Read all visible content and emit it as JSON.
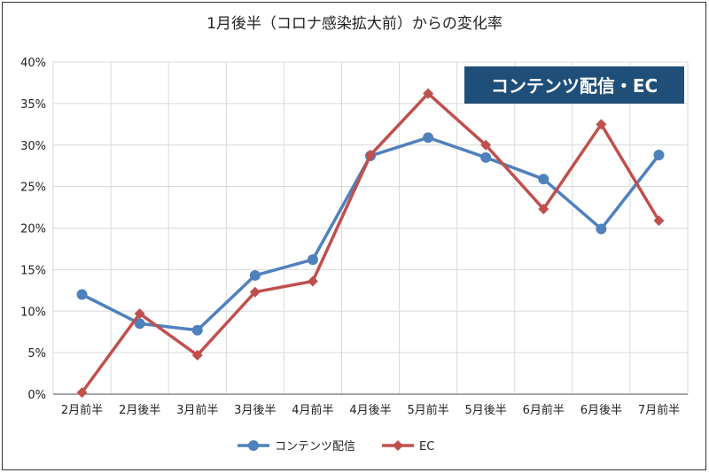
{
  "chart_data": {
    "type": "line",
    "title": "1月後半（コロナ感染拡大前）からの変化率",
    "badge": "コンテンツ配信・EC",
    "categories": [
      "2月前半",
      "2月後半",
      "3月前半",
      "3月後半",
      "4月前半",
      "4月後半",
      "5月前半",
      "5月後半",
      "6月前半",
      "6月後半",
      "7月前半"
    ],
    "y_ticks": [
      "0%",
      "5%",
      "10%",
      "15%",
      "20%",
      "25%",
      "30%",
      "35%",
      "40%"
    ],
    "ylim": [
      0,
      40
    ],
    "grid": true,
    "legend_position": "bottom",
    "series": [
      {
        "name": "コンテンツ配信",
        "color": "#4f81bd",
        "marker": "circle",
        "values": [
          12.0,
          8.5,
          7.7,
          14.3,
          16.2,
          28.7,
          30.9,
          28.5,
          25.9,
          19.9,
          28.8
        ]
      },
      {
        "name": "EC",
        "color": "#c0504d",
        "marker": "diamond",
        "values": [
          0.2,
          9.7,
          4.7,
          12.3,
          13.6,
          28.8,
          36.2,
          30.0,
          22.3,
          32.5,
          20.9
        ]
      }
    ]
  }
}
